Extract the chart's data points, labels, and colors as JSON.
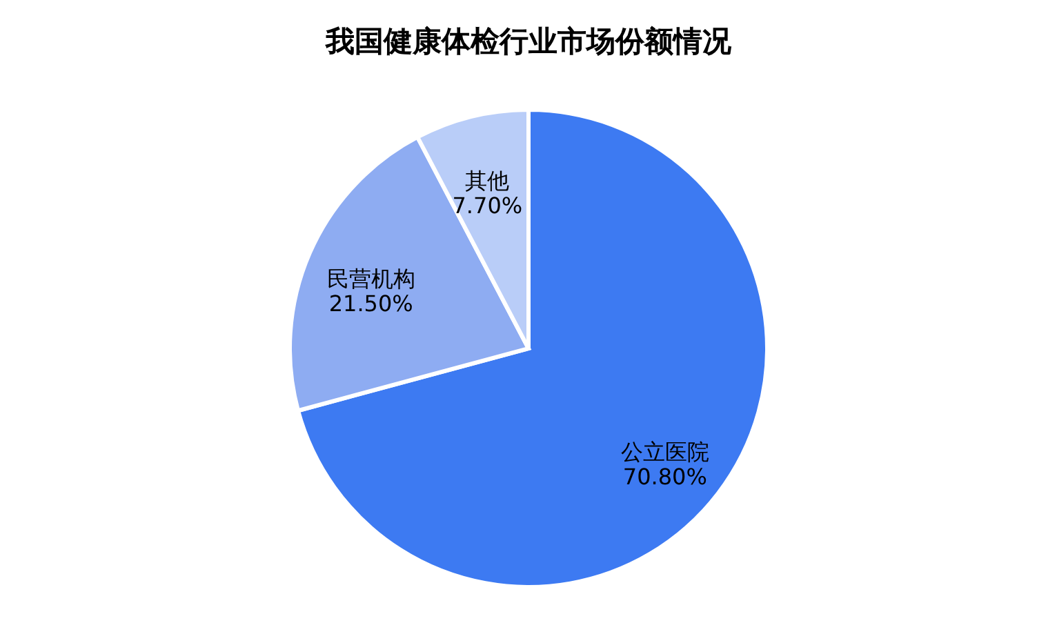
{
  "chart_data": {
    "type": "pie",
    "title": "我国健康体检行业市场份额情况",
    "categories": [
      "公立医院",
      "民营机构",
      "其他"
    ],
    "values": [
      70.8,
      21.5,
      7.7
    ],
    "value_labels": [
      "70.80%",
      "21.50%",
      "7.70%"
    ],
    "colors": [
      "#3d7af2",
      "#8eacf2",
      "#b9cdf8"
    ],
    "legend": false
  }
}
